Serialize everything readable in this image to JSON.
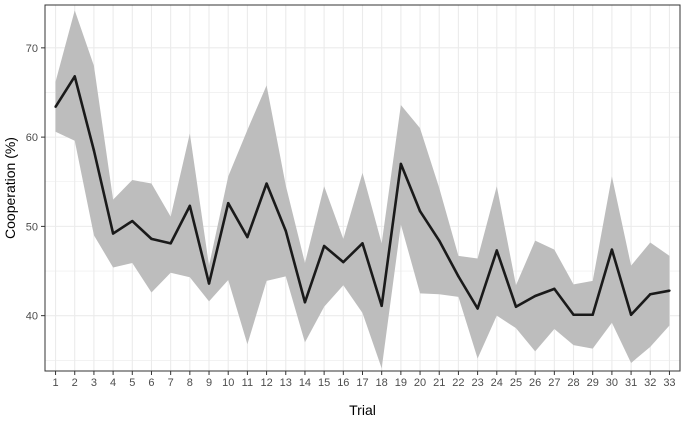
{
  "chart_data": {
    "type": "line",
    "title": "",
    "xlabel": "Trial",
    "ylabel": "Cooperation (%)",
    "xlim": [
      0.45,
      33.55
    ],
    "ylim": [
      33.8,
      74.8
    ],
    "x_ticks": [
      1,
      2,
      3,
      4,
      5,
      6,
      7,
      8,
      9,
      10,
      11,
      12,
      13,
      14,
      15,
      16,
      17,
      18,
      19,
      20,
      21,
      22,
      23,
      24,
      25,
      26,
      27,
      28,
      29,
      30,
      31,
      32,
      33
    ],
    "y_ticks": [
      40,
      50,
      60,
      70
    ],
    "grid": true,
    "legend": "none",
    "series": [
      {
        "x": [
          1,
          2,
          3,
          4,
          5,
          6,
          7,
          8,
          9,
          10,
          11,
          12,
          13,
          14,
          15,
          16,
          17,
          18,
          19,
          20,
          21,
          22,
          23,
          24,
          25,
          26,
          27,
          28,
          29,
          30,
          31,
          32,
          33
        ],
        "values": [
          63.4,
          66.8,
          58.5,
          49.2,
          50.6,
          48.6,
          48.1,
          52.3,
          43.6,
          52.6,
          48.8,
          54.8,
          49.5,
          41.5,
          47.8,
          46.0,
          48.1,
          41.1,
          57.0,
          51.7,
          48.4,
          44.4,
          40.8,
          47.3,
          41.0,
          42.2,
          43.0,
          40.1,
          40.1,
          47.4,
          40.1,
          42.4,
          42.8
        ],
        "lower": [
          60.6,
          59.6,
          49.0,
          45.4,
          45.9,
          42.6,
          44.8,
          44.3,
          41.6,
          44.0,
          36.8,
          43.9,
          44.4,
          37.0,
          41.0,
          43.4,
          40.3,
          34.1,
          50.2,
          42.5,
          42.4,
          42.1,
          35.2,
          40.0,
          38.6,
          36.0,
          38.5,
          36.7,
          36.3,
          39.2,
          34.7,
          36.5,
          38.9
        ],
        "upper": [
          66.2,
          74.2,
          68.0,
          53.0,
          55.2,
          54.8,
          51.1,
          60.4,
          45.6,
          55.6,
          60.8,
          65.8,
          54.6,
          45.9,
          54.5,
          48.6,
          56.0,
          48.1,
          63.6,
          61.0,
          54.3,
          46.7,
          46.4,
          54.5,
          43.4,
          48.4,
          47.4,
          43.5,
          43.9,
          55.6,
          45.6,
          48.2,
          46.7
        ]
      }
    ],
    "colors": {
      "line": "#1a1a1a",
      "ribbon": "#bdbdbd",
      "panel_border": "#333333",
      "grid": "#ebebeb",
      "tick_text": "#4d4d4d"
    }
  }
}
